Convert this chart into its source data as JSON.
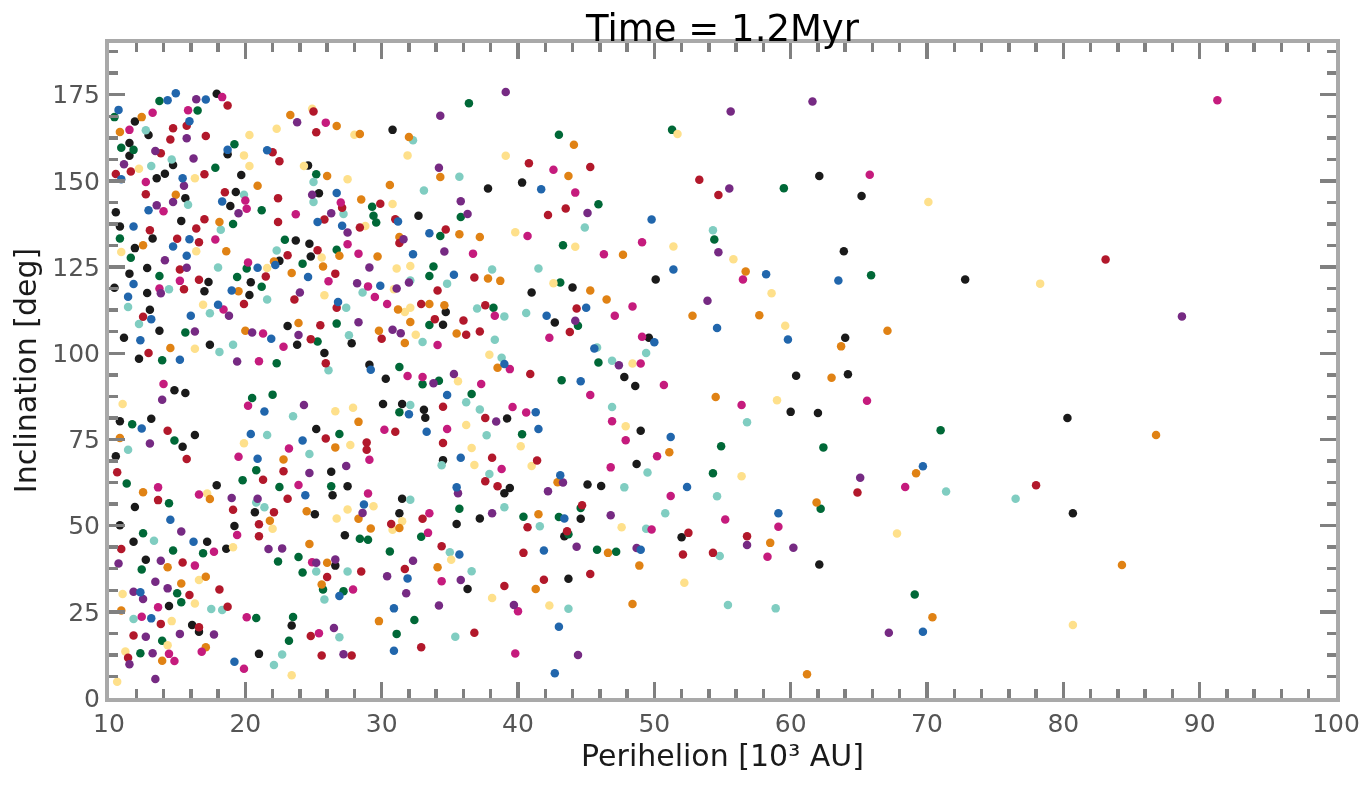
{
  "chart_data": {
    "type": "scatter",
    "title": "Time = 1.2Myr",
    "xlabel": "Perihelion [10³ AU]",
    "ylabel": "Inclination [deg]",
    "xlim": [
      10,
      100
    ],
    "ylim": [
      0,
      190
    ],
    "xticks": [
      10,
      {
        "value": 12,
        "label": null
      },
      {
        "value": 14,
        "label": null
      },
      {
        "value": 16,
        "label": null
      },
      {
        "value": 18,
        "label": null
      },
      20,
      {
        "value": 22,
        "label": null
      },
      {
        "value": 24,
        "label": null
      },
      {
        "value": 26,
        "label": null
      },
      {
        "value": 28,
        "label": null
      },
      30,
      {
        "value": 32,
        "label": null
      },
      {
        "value": 34,
        "label": null
      },
      {
        "value": 36,
        "label": null
      },
      {
        "value": 38,
        "label": null
      },
      40,
      {
        "value": 42,
        "label": null
      },
      {
        "value": 44,
        "label": null
      },
      {
        "value": 46,
        "label": null
      },
      {
        "value": 48,
        "label": null
      },
      50,
      {
        "value": 52,
        "label": null
      },
      {
        "value": 54,
        "label": null
      },
      {
        "value": 56,
        "label": null
      },
      {
        "value": 58,
        "label": null
      },
      60,
      {
        "value": 62,
        "label": null
      },
      {
        "value": 64,
        "label": null
      },
      {
        "value": 66,
        "label": null
      },
      {
        "value": 68,
        "label": null
      },
      70,
      {
        "value": 72,
        "label": null
      },
      {
        "value": 74,
        "label": null
      },
      {
        "value": 76,
        "label": null
      },
      {
        "value": 78,
        "label": null
      },
      80,
      {
        "value": 82,
        "label": null
      },
      {
        "value": 84,
        "label": null
      },
      {
        "value": 86,
        "label": null
      },
      {
        "value": 88,
        "label": null
      },
      90,
      {
        "value": 92,
        "label": null
      },
      {
        "value": 94,
        "label": null
      },
      {
        "value": 96,
        "label": null
      },
      {
        "value": 98,
        "label": null
      },
      100
    ],
    "yticks": [
      0,
      {
        "value": 6.25,
        "label": null
      },
      {
        "value": 12.5,
        "label": null
      },
      {
        "value": 18.75,
        "label": null
      },
      25,
      {
        "value": 31.25,
        "label": null
      },
      {
        "value": 37.5,
        "label": null
      },
      {
        "value": 43.75,
        "label": null
      },
      50,
      {
        "value": 56.25,
        "label": null
      },
      {
        "value": 62.5,
        "label": null
      },
      {
        "value": 68.75,
        "label": null
      },
      75,
      {
        "value": 81.25,
        "label": null
      },
      {
        "value": 87.5,
        "label": null
      },
      {
        "value": 93.75,
        "label": null
      },
      100,
      {
        "value": 106.25,
        "label": null
      },
      {
        "value": 112.5,
        "label": null
      },
      {
        "value": 118.75,
        "label": null
      },
      125,
      {
        "value": 131.25,
        "label": null
      },
      {
        "value": 137.5,
        "label": null
      },
      {
        "value": 143.75,
        "label": null
      },
      150,
      {
        "value": 156.25,
        "label": null
      },
      {
        "value": 162.5,
        "label": null
      },
      {
        "value": 168.75,
        "label": null
      },
      175,
      {
        "value": 181.25,
        "label": null
      },
      {
        "value": 187.5,
        "label": null
      }
    ],
    "marker": "circle",
    "grid": false,
    "series": [
      {
        "color": "#1a1a1a",
        "x": [
          40.3,
          62.1,
          65.2,
          63.9,
          64.0,
          50.1,
          44.0,
          41.0,
          42.7,
          49.6,
          47.8,
          48.6,
          60.4,
          64.2,
          60.0,
          62.0,
          49.0,
          48.7,
          39.4,
          39.0,
          45.1,
          46.1,
          44.6,
          43.4,
          52.0,
          62.1,
          43.7,
          72.8,
          80.3,
          80.7,
          17.9,
          11.9,
          12.9,
          30.8,
          18.7,
          11.5,
          11.5,
          24.6,
          37.8,
          32.7,
          25.4,
          14.1,
          14.7,
          13.5,
          19.7,
          19.3,
          18.9,
          15.6,
          10.5,
          15.3,
          13.2,
          10.8,
          11.9,
          12.8,
          24.7,
          24.8,
          22.5,
          23.7,
          17.3,
          20.4,
          20.3,
          34.7,
          34.5,
          23.1,
          23.8,
          25.8,
          27.8,
          17.4,
          17.0,
          12.8,
          11.5,
          13.0,
          11.1,
          13.7,
          12.2,
          10.4,
          29.1,
          30.3,
          39.2,
          33.1,
          33.2,
          31.5,
          34.5,
          37.2,
          35.5,
          31.3,
          31.5,
          36.3,
          25.2,
          30.1,
          26.3,
          27.5,
          26.4,
          27.3,
          25.1,
          20.7,
          26.6,
          23.4,
          21.0,
          16.1,
          16.6,
          14.4,
          12.7,
          11.8,
          17.2,
          18.6,
          19.2,
          17.9,
          10.8,
          10.5,
          11.9,
          10.8,
          13.1,
          14.8,
          15.6,
          15.4,
          16.3
        ],
        "values": [
          149.5,
          151.4,
          145.6,
          129.6,
          104.5,
          121.4,
          119.1,
          117.6,
          108.9,
          104.5,
          93.1,
          90.5,
          93.5,
          93.9,
          83.0,
          82.7,
          77.5,
          67.9,
          60.9,
          59.4,
          61.9,
          61.5,
          52.0,
          46.9,
          46.6,
          38.7,
          34.6,
          121.4,
          81.2,
          53.6,
          175.3,
          167.2,
          163.3,
          164.8,
          157.7,
          161.0,
          157.3,
          154.5,
          147.8,
          139.9,
          146.4,
          152.1,
          154.6,
          150.8,
          151.7,
          146.8,
          142.7,
          145.0,
          140.9,
          138.4,
          133.3,
          136.8,
          130.5,
          124.7,
          131.8,
          128.1,
          126.8,
          132.7,
          120.7,
          120.6,
          116.9,
          112.0,
          108.3,
          107.9,
          102.5,
          100.1,
          102.9,
          102.5,
          118.0,
          117.5,
          123.1,
          112.6,
          104.5,
          106.5,
          98.4,
          119.0,
          96.7,
          92.6,
          81.1,
          83.6,
          81.3,
          85.3,
          69.0,
          52.1,
          50.5,
          53.6,
          57.8,
          31.6,
          78.0,
          85.3,
          65.6,
          61.4,
          58.8,
          47.2,
          53.3,
          53.9,
          38.4,
          21.0,
          12.8,
          21.2,
          19.2,
          26.7,
          40.1,
          45.3,
          45.3,
          43.3,
          49.9,
          61.7,
          80.3,
          70.1,
          55.4,
          50.1,
          81.0,
          89.3,
          88.5,
          72.9,
          76.3
        ]
      },
      {
        "color": "#006837",
        "x": [
          43.0,
          51.3,
          45.9,
          43.3,
          54.4,
          59.5,
          65.9,
          43.1,
          44.4,
          45.9,
          36.4,
          43.2,
          40.3,
          54.9,
          62.4,
          54.3,
          44.6,
          40.4,
          43.0,
          62.2,
          43.7,
          45.8,
          47.2,
          69.1,
          71.0,
          13.7,
          16.5,
          10.4,
          25.2,
          19.2,
          10.9,
          11.8,
          35.8,
          29.4,
          29.6,
          29.3,
          33.8,
          33.5,
          34.3,
          26.7,
          24.2,
          38.2,
          33.5,
          26.7,
          25.3,
          15.6,
          13.7,
          13.9,
          17.8,
          21.2,
          19.1,
          10.8,
          11.6,
          20.1,
          19.4,
          21.2,
          22.9,
          31.3,
          22.3,
          33.0,
          34.2,
          36.6,
          31.3,
          35.7,
          32.9,
          30.6,
          32.4,
          31.1,
          26.9,
          26.3,
          28.4,
          29.0,
          23.9,
          22.5,
          22.4,
          24.2,
          25.7,
          27.2,
          23.5,
          23.2,
          12.3,
          13.9,
          15.3,
          15.0,
          12.4,
          14.7,
          16.9,
          12.5,
          20.8,
          20.8,
          19.8,
          14.4,
          20.5,
          22.0,
          11.3,
          11.7,
          14.8
        ],
        "values": [
          163.4,
          164.8,
          143.2,
          131.3,
          133.0,
          147.9,
          122.6,
          120.5,
          108.0,
          97.3,
          172.5,
          92.2,
          76.5,
          73.0,
          72.7,
          65.2,
          55.1,
          52.6,
          52.5,
          54.9,
          47.5,
          43.0,
          42.4,
          30.0,
          77.7,
          173.2,
          170.4,
          168.5,
          151.9,
          160.6,
          159.6,
          159.0,
          139.5,
          139.9,
          137.9,
          142.5,
          125.2,
          122.4,
          134.0,
          130.0,
          126.0,
          113.2,
          108.2,
          108.6,
          103.4,
          106.0,
          122.4,
          98.0,
          153.8,
          141.5,
          137.5,
          133.3,
          127.7,
          124.6,
          122.1,
          119.3,
          132.9,
          96.0,
          97.1,
          91.0,
          92.0,
          88.2,
          82.9,
          54.9,
          46.8,
          42.5,
          22.6,
          18.6,
          76.6,
          61.4,
          46.2,
          45.9,
          40.9,
          61.2,
          39.6,
          36.4,
          31.5,
          31.0,
          23.5,
          16.6,
          13.0,
          16.6,
          27.8,
          30.4,
          37.3,
          42.8,
          42.0,
          47.8,
          23.2,
          66.1,
          63.2,
          56.5,
          87.0,
          88.0,
          62.2,
          79.4,
          74.7
        ]
      },
      {
        "color": "#80cdc1",
        "x": [
          44.9,
          54.3,
          41.5,
          40.6,
          39.0,
          45.8,
          49.4,
          46.9,
          46.9,
          56.8,
          49.5,
          47.8,
          54.6,
          39.0,
          41.6,
          50.8,
          49.4,
          54.8,
          43.7,
          55.4,
          58.9,
          71.4,
          76.5,
          32.3,
          12.7,
          25.0,
          35.7,
          33.1,
          25.0,
          27.2,
          38.1,
          28.6,
          34.8,
          32.1,
          21.6,
          27.4,
          37.0,
          38.3,
          38.8,
          33.0,
          27.6,
          19.1,
          18.1,
          17.4,
          14.4,
          11.4,
          12.2,
          13.1,
          14.6,
          19.9,
          15.8,
          18.2,
          18.0,
          22.3,
          26.1,
          36.2,
          37.2,
          32.1,
          34.4,
          37.7,
          37.9,
          32.1,
          35.0,
          36.6,
          35.4,
          27.5,
          25.2,
          25.8,
          26.9,
          22.1,
          22.7,
          11.8,
          17.5,
          18.3,
          13.3,
          21.4,
          20.8,
          24.7,
          23.5,
          21.6,
          11.4
        ],
        "values": [
          136.5,
          135.7,
          124.6,
          111.7,
          110.7,
          101.7,
          100.1,
          97.8,
          84.4,
          80.0,
          65.4,
          61.1,
          58.5,
          55.3,
          49.8,
          53.6,
          49.1,
          41.2,
          25.9,
          27.0,
          26.0,
          59.9,
          57.8,
          161.8,
          164.7,
          149.7,
          151.2,
          147.2,
          143.9,
          140.4,
          124.3,
          117.6,
          120.2,
          121.1,
          115.6,
          113.2,
          113.0,
          103.9,
          98.7,
          103.3,
          105.2,
          102.5,
          100.4,
          111.6,
          118.6,
          113.4,
          108.5,
          154.3,
          156.2,
          146.0,
          143.1,
          135.8,
          124.9,
          129.8,
          95.1,
          85.8,
          83.7,
          85.0,
          67.5,
          76.2,
          65.0,
          57.5,
          42.3,
          36.8,
          17.8,
          36.7,
          36.7,
          28.6,
          17.6,
          9.6,
          12.6,
          22.9,
          25.8,
          25.5,
          45.6,
          55.3,
          56.7,
          70.8,
          81.7,
          76.3,
          72.0
        ]
      },
      {
        "color": "#fee08b",
        "x": [
          51.7,
          39.1,
          39.8,
          44.2,
          51.4,
          55.8,
          58.6,
          59.6,
          42.6,
          48.4,
          59.0,
          47.9,
          40.2,
          41.0,
          56.4,
          47.6,
          67.8,
          52.2,
          42.3,
          70.1,
          78.3,
          80.7,
          24.9,
          22.3,
          20.3,
          28.0,
          31.9,
          19.9,
          20.3,
          24.3,
          27.5,
          28.8,
          30.8,
          31.1,
          32.1,
          25.6,
          30.9,
          25.8,
          31.7,
          32.1,
          37.9,
          32.5,
          16.9,
          16.3,
          12.2,
          16.3,
          16.4,
          10.9,
          21.6,
          35.6,
          36.2,
          36.6,
          36.8,
          31.5,
          30.8,
          35.1,
          38.1,
          26.6,
          27.9,
          27.7,
          29.4,
          27.5,
          26.7,
          23.4,
          10.6,
          11.2,
          14.3,
          14.6,
          16.3,
          11.0,
          16.6,
          19.1,
          17.2,
          22.0,
          19.9,
          11.0
        ],
        "values": [
          163.6,
          157.3,
          135.1,
          130.9,
          131.0,
          127.3,
          117.4,
          108.0,
          120.3,
          97.0,
          86.4,
          78.8,
          73.0,
          67.3,
          64.3,
          49.5,
          47.7,
          33.4,
          26.8,
          143.9,
          120.2,
          21.2,
          170.9,
          165.1,
          163.3,
          163.4,
          157.4,
          157.4,
          154.3,
          154.3,
          150.5,
          136.9,
          143.3,
          124.6,
          125.3,
          127.8,
          118.6,
          116.8,
          112.0,
          113.2,
          99.6,
          105.4,
          114.1,
          101.3,
          153.5,
          150.8,
          129.6,
          129.4,
          124.7,
          91.9,
          79.2,
          72.5,
          67.6,
          51.3,
          48.8,
          40.1,
          29.0,
          83.2,
          84.2,
          73.4,
          55.6,
          54.7,
          52.1,
          6.6,
          4.7,
          13.5,
          15.3,
          22.3,
          27.4,
          30.2,
          34.2,
          43.7,
          59.3,
          49.1,
          73.9,
          85.3
        ]
      },
      {
        "color": "#e08214",
        "x": [
          44.1,
          43.7,
          47.7,
          56.7,
          57.7,
          63.7,
          67.1,
          52.8,
          45.3,
          46.5,
          63.0,
          54.5,
          51.1,
          69.2,
          42.9,
          41.5,
          61.9,
          58.5,
          46.6,
          48.9,
          41.3,
          48.4,
          61.2,
          86.8,
          84.3,
          70.4,
          12.4,
          10.8,
          23.3,
          26.7,
          28.4,
          32.0,
          26.0,
          30.6,
          34.3,
          28.5,
          37.2,
          35.7,
          31.3,
          29.7,
          26.9,
          25.7,
          23.4,
          37.8,
          38.7,
          31.2,
          33.5,
          34.6,
          32.1,
          35.5,
          31.7,
          29.8,
          23.9,
          20.0,
          14.5,
          14.9,
          20.9,
          18.1,
          18.6,
          19.5,
          22.1,
          12.5,
          38.5,
          34.1,
          29.8,
          28.3,
          26.6,
          28.3,
          29.2,
          24.7,
          24.5,
          26.0,
          25.6,
          13.9,
          17.1,
          10.9,
          15.3,
          17.1,
          14.3,
          22.8,
          21.8,
          17.4,
          12.5,
          10.8,
          31.3
        ],
        "values": [
          160.5,
          151.4,
          128.6,
          123.7,
          111.0,
          102.0,
          106.5,
          110.9,
          118.2,
          115.6,
          92.9,
          87.3,
          71.3,
          65.2,
          62.6,
          53.3,
          56.7,
          45.0,
          42.1,
          38.4,
          31.6,
          27.3,
          6.9,
          76.3,
          38.6,
          23.4,
          168.5,
          164.2,
          169.1,
          165.9,
          163.6,
          162.7,
          151.4,
          148.8,
          151.1,
          144.6,
          133.7,
          134.5,
          133.7,
          128.1,
          128.3,
          125.2,
          123.3,
          121.7,
          121.0,
          112.7,
          114.3,
          113.9,
          109.1,
          105.7,
          103.0,
          106.5,
          108.8,
          106.5,
          101.5,
          146.0,
          148.6,
          138.1,
          129.6,
          118.0,
          126.6,
          131.3,
          95.8,
          37.9,
          22.3,
          80.1,
          72.7,
          52.0,
          49.2,
          44.7,
          54.2,
          39.2,
          32.9,
          10.8,
          14.7,
          25.4,
          33.2,
          35.2,
          37.9,
          69.2,
          51.4,
          57.7,
          59.7,
          75.4,
          49.3
        ]
      },
      {
        "color": "#b2182b",
        "x": [
          40.8,
          45.3,
          43.5,
          42.2,
          53.3,
          54.7,
          44.3,
          43.8,
          40.9,
          41.4,
          64.9,
          44.7,
          40.7,
          43.6,
          52.5,
          56.8,
          40.4,
          52.1,
          54.3,
          45.3,
          41.9,
          39.0,
          83.1,
          78.0,
          18.7,
          15.7,
          14.7,
          14.5,
          17.1,
          13.8,
          25.0,
          25.2,
          22.0,
          22.5,
          31.0,
          28.4,
          29.9,
          27.1,
          25.8,
          22.4,
          34.7,
          31.3,
          25.3,
          26.6,
          36.8,
          34.1,
          23.6,
          26.7,
          32.9,
          33.9,
          36.0,
          37.6,
          36.2,
          37.2,
          30.0,
          25.5,
          24.8,
          15.5,
          12.5,
          12.9,
          10.5,
          11.6,
          17.0,
          18.5,
          22.4,
          12.7,
          17.0,
          16.6,
          16.4,
          15.0,
          13.0,
          15.2,
          16.6,
          21.5,
          19.9,
          23.1,
          25.9,
          37.6,
          34.5,
          34.5,
          38.1,
          37.6,
          38.5,
          33.0,
          30.7,
          34.4,
          31.7,
          36.8,
          32.9,
          31.0,
          25.9,
          28.9,
          28.9,
          22.1,
          23.1,
          21.3,
          28.5,
          26.0,
          24.8,
          25.6,
          27.8,
          11.4,
          11.8,
          16.6,
          13.8,
          18.7,
          15.9,
          18.1,
          15.4,
          10.9,
          19.1,
          21.0,
          21.0,
          22.8,
          10.6,
          14.3,
          15.7,
          13.6
        ],
        "values": [
          155.1,
          154.0,
          142.0,
          140.1,
          150.3,
          145.9,
          113.0,
          106.2,
          94.0,
          68.9,
          59.6,
          55.9,
          49.5,
          48.4,
          47.9,
          46.9,
          42.1,
          41.6,
          42.1,
          36.0,
          34.3,
          32.5,
          127.2,
          61.7,
          171.9,
          166.0,
          165.3,
          162.0,
          163.0,
          158.0,
          170.1,
          164.1,
          158.3,
          155.7,
          138.9,
          136.5,
          143.4,
          142.2,
          138.8,
          138.1,
          135.9,
          132.0,
          129.9,
          123.1,
          122.0,
          118.2,
          115.6,
          113.2,
          114.3,
          109.9,
          109.5,
          113.9,
          105.4,
          106.3,
          104.2,
          108.1,
          104.1,
          118.6,
          110.6,
          100.1,
          152.0,
          152.7,
          151.9,
          146.7,
          145.0,
          146.1,
          138.9,
          132.2,
          136.2,
          133.2,
          135.7,
          124.3,
          121.3,
          122.3,
          114.3,
          128.4,
          97.1,
          81.2,
          84.5,
          74.0,
          69.7,
          62.9,
          61.4,
          52.0,
          50.5,
          44.0,
          37.4,
          18.9,
          14.7,
          77.2,
          75.3,
          74.1,
          72.0,
          53.9,
          57.8,
          63.3,
          36.7,
          35.1,
          18.0,
          12.3,
          12.3,
          11.7,
          18.1,
          20.5,
          21.5,
          26.5,
          29.9,
          31.5,
          39.3,
          43.2,
          54.6,
          50.4,
          46.9,
          65.8,
          65.5,
          77.5,
          69.3,
          57.4
        ]
      },
      {
        "color": "#c51b7d",
        "x": [
          42.6,
          44.2,
          40.7,
          46.3,
          49.1,
          56.5,
          65.8,
          48.4,
          47.1,
          42.3,
          49.1,
          49.0,
          50.7,
          45.3,
          56.4,
          65.6,
          39.6,
          40.6,
          46.9,
          47.9,
          50.2,
          46.8,
          68.4,
          51.2,
          55.2,
          59.1,
          49.8,
          58.3,
          40.0,
          39.8,
          91.3,
          18.3,
          15.8,
          13.2,
          11.5,
          25.9,
          27.0,
          23.7,
          27.5,
          36.7,
          28.3,
          26.1,
          29.0,
          29.5,
          30.4,
          38.3,
          34.1,
          22.8,
          21.3,
          18.4,
          15.2,
          13.7,
          21.0,
          12.7,
          20.0,
          20.1,
          14.0,
          17.8,
          20.2,
          39.4,
          31.9,
          33.0,
          37.3,
          34.8,
          38.8,
          33.5,
          33.4,
          34.4,
          30.2,
          29.1,
          29.0,
          24.9,
          27.9,
          25.4,
          19.9,
          14.8,
          14.4,
          16.8,
          12.4,
          20.1,
          13.6,
          16.3,
          17.7,
          19.4,
          23.9,
          23.2,
          20.2,
          19.5,
          16.6,
          13.6,
          14.0
        ],
        "values": [
          153.2,
          146.6,
          134.0,
          128.7,
          132.2,
          121.4,
          151.8,
          113.6,
          110.9,
          104.5,
          104.8,
          97.0,
          90.8,
          87.9,
          85.0,
          86.2,
          84.4,
          82.8,
          80.3,
          74.8,
          70.1,
          66.9,
          61.2,
          58.6,
          51.8,
          49.7,
          48.9,
          41.0,
          25.2,
          12.9,
          173.4,
          174.3,
          170.5,
          169.8,
          164.8,
          166.9,
          143.7,
          140.3,
          131.6,
          128.9,
          128.9,
          120.9,
          119.4,
          116.3,
          114.3,
          110.9,
          102.4,
          101.9,
          105.7,
          112.7,
          121.0,
          118.8,
          97.7,
          149.7,
          144.3,
          141.9,
          141.2,
          133.0,
          126.3,
          95.4,
          93.4,
          93.1,
          91.1,
          78.0,
          66.4,
          53.6,
          47.9,
          33.9,
          77.8,
          69.1,
          59.3,
          39.4,
          31.5,
          18.8,
          8.5,
          10.7,
          12.8,
          13.4,
          23.6,
          23.4,
          26.3,
          38.4,
          42.4,
          47.3,
          61.8,
          72.4,
          84.8,
          70.0,
          59.0,
          61.1,
          91.1
        ]
      },
      {
        "color": "#762a83",
        "x": [
          39.1,
          55.6,
          61.6,
          45.1,
          54.7,
          55.5,
          53.9,
          44.2,
          47.4,
          65.1,
          43.3,
          42.2,
          46.8,
          56.8,
          60.2,
          44.3,
          48.7,
          39.7,
          44.4,
          67.2,
          88.7,
          16.4,
          23.8,
          34.3,
          15.7,
          13.4,
          16.2,
          34.2,
          35.8,
          36.3,
          24.9,
          26.3,
          27.5,
          31.6,
          34.6,
          29.1,
          28.2,
          31.1,
          32.0,
          24.0,
          31.4,
          30.8,
          28.3,
          23.9,
          20.5,
          19.4,
          16.3,
          18.8,
          13.8,
          15.7,
          11.1,
          15.5,
          19.5,
          14.7,
          13.5,
          14.1,
          33.8,
          35.3,
          38.4,
          35.6,
          38.1,
          32.3,
          35.8,
          31.8,
          34.2,
          27.4,
          28.6,
          21.7,
          22.7,
          25.2,
          26.6,
          30.4,
          26.5,
          27.2,
          13.4,
          11.5,
          13.2,
          12.7,
          17.7,
          15.2,
          12.5,
          11.8,
          14.3,
          13.4,
          13.8,
          10.7,
          15.3,
          19.0,
          20.9,
          24.7,
          24.3,
          13.0,
          13.9
        ],
        "values": [
          175.8,
          170.1,
          173.0,
          140.7,
          129.3,
          147.8,
          115.2,
          109.4,
          96.5,
          63.9,
          62.5,
          60.0,
          53.0,
          44.4,
          43.6,
          43.9,
          43.5,
          27.0,
          12.5,
          18.9,
          110.7,
          173.7,
          167.0,
          168.9,
          162.4,
          158.7,
          156.5,
          153.8,
          144.1,
          140.4,
          146.0,
          140.6,
          135.0,
          133.1,
          129.5,
          124.9,
          120.3,
          118.8,
          120.5,
          117.6,
          105.8,
          106.8,
          109.0,
          105.3,
          106.0,
          97.6,
          106.3,
          110.9,
          117.4,
          124.8,
          154.8,
          148.6,
          140.6,
          143.9,
          142.9,
          127.0,
          91.3,
          94.0,
          80.2,
          59.4,
          53.6,
          39.8,
          34.2,
          30.4,
          26.8,
          67.3,
          53.7,
          43.2,
          43.4,
          39.2,
          40.2,
          35.3,
          20.3,
          12.7,
          5.5,
          9.8,
          13.0,
          17.8,
          18.4,
          18.6,
          28.7,
          30.8,
          31.8,
          33.7,
          39.8,
          39.0,
          48.3,
          58.0,
          57.8,
          65.3,
          85.0,
          73.8,
          86.5
        ]
      },
      {
        "color": "#2166ac",
        "x": [
          41.7,
          49.8,
          58.2,
          63.5,
          59.8,
          54.6,
          51.4,
          45.0,
          42.1,
          50.0,
          45.6,
          44.6,
          41.3,
          41.5,
          51.2,
          43.1,
          52.4,
          43.4,
          59.1,
          41.9,
          49.0,
          43.0,
          42.7,
          69.7,
          69.7,
          14.9,
          14.3,
          17.1,
          10.7,
          15.9,
          18.7,
          21.6,
          26.7,
          31.2,
          25.3,
          27.1,
          33.5,
          32.3,
          35.3,
          22.2,
          24.6,
          29.9,
          26.8,
          21.9,
          16.0,
          18.0,
          11.8,
          11.4,
          13.1,
          12.3,
          15.2,
          15.4,
          10.9,
          18.3,
          12.9,
          15.9,
          14.7,
          15.7,
          11.8,
          20.9,
          19.0,
          39.0,
          29.2,
          34.8,
          32.0,
          33.3,
          35.8,
          35.5,
          35.7,
          31.9,
          30.9,
          30.9,
          28.7,
          24.4,
          26.9,
          19.2,
          13.1,
          12.3,
          16.2,
          14.5,
          20.9,
          24.2,
          20.4,
          21.4,
          12.4
        ],
        "values": [
          147.6,
          138.8,
          122.9,
          121.1,
          104.0,
          107.3,
          124.3,
          113.2,
          110.9,
          103.2,
          101.4,
          91.9,
          82.9,
          78.0,
          75.7,
          64.6,
          61.2,
          52.1,
          53.6,
          42.8,
          43.0,
          20.7,
          7.2,
          67.2,
          19.2,
          175.4,
          173.4,
          173.6,
          170.6,
          167.3,
          159.0,
          158.9,
          146.5,
          138.2,
          138.1,
          137.0,
          134.8,
          128.7,
          122.8,
          125.6,
          122.1,
          119.6,
          114.9,
          104.2,
          110.9,
          114.1,
          120.1,
          116.4,
          109.9,
          103.8,
          98.1,
          150.8,
          150.5,
          144.0,
          141.5,
          133.1,
          131.0,
          128.3,
          136.8,
          124.8,
          118.2,
          96.9,
          95.2,
          87.9,
          82.3,
          77.2,
          69.7,
          61.1,
          41.6,
          34.7,
          26.0,
          13.7,
          56.1,
          58.8,
          29.6,
          10.5,
          23.1,
          30.7,
          45.3,
          51.7,
          69.4,
          74.7,
          76.6,
          83.1,
          78.2
        ]
      }
    ]
  }
}
